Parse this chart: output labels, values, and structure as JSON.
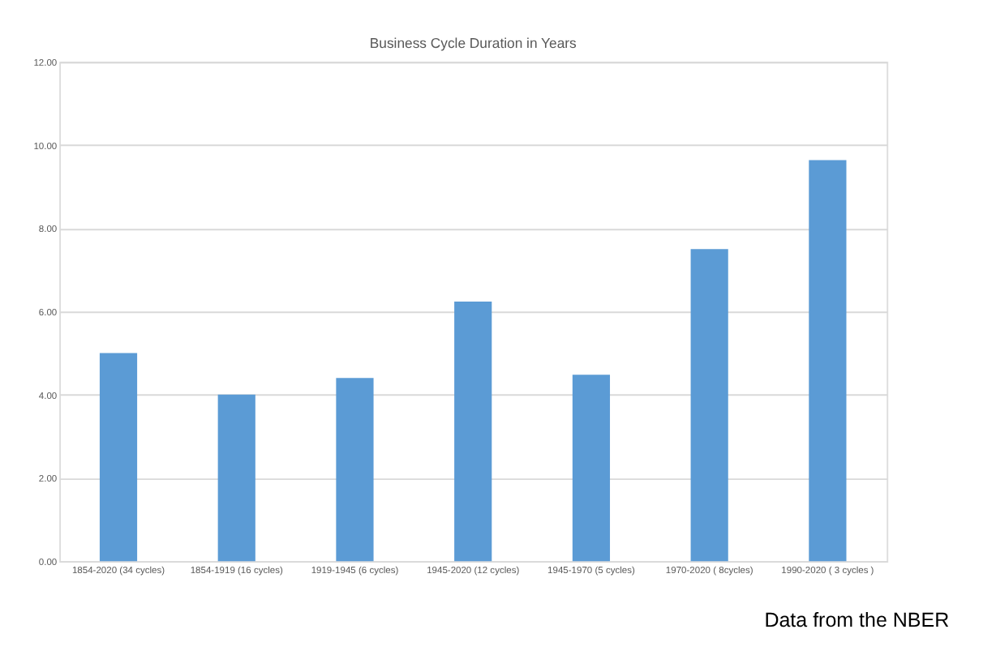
{
  "chart_data": {
    "type": "bar",
    "title": "Business Cycle Duration in Years",
    "categories": [
      "1854-2020 (34 cycles)",
      "1854-1919 (16 cycles)",
      "1919-1945 (6 cycles)",
      "1945-2020 (12 cycles)",
      "1945-1970 (5 cycles)",
      "1970-2020 ( 8cycles)",
      "1990-2020 ( 3 cycles )"
    ],
    "values": [
      5.0,
      4.0,
      4.4,
      6.24,
      4.48,
      7.5,
      9.64
    ],
    "color": "#5b9bd5",
    "ylim": [
      0,
      12
    ],
    "yticks": [
      {
        "value": 0,
        "label": "0.00"
      },
      {
        "value": 2,
        "label": "2.00"
      },
      {
        "value": 4,
        "label": "4.00"
      },
      {
        "value": 6,
        "label": "6.00"
      },
      {
        "value": 8,
        "label": "8.00"
      },
      {
        "value": 10,
        "label": "10.00"
      },
      {
        "value": 12,
        "label": "12.00"
      }
    ],
    "grid": "y",
    "annotations": [
      "Data from the NBER"
    ]
  }
}
